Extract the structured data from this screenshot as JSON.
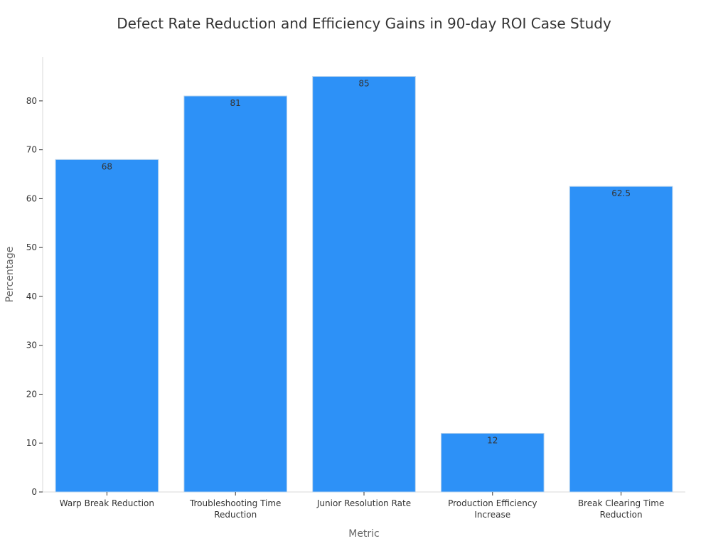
{
  "chart_data": {
    "type": "bar",
    "title": "Defect Rate Reduction and Efficiency Gains in 90-day ROI Case Study",
    "xlabel": "Metric",
    "ylabel": "Percentage",
    "categories": [
      [
        "Warp Break Reduction"
      ],
      [
        "Troubleshooting Time",
        "Reduction"
      ],
      [
        "Junior Resolution Rate"
      ],
      [
        "Production Efficiency",
        "Increase"
      ],
      [
        "Break Clearing Time",
        "Reduction"
      ]
    ],
    "values": [
      68,
      81,
      85,
      12,
      62.5
    ],
    "value_labels": [
      "68",
      "81",
      "85",
      "12",
      "62.5"
    ],
    "ylim": [
      0,
      89
    ],
    "yticks": [
      0,
      10,
      20,
      30,
      40,
      50,
      60,
      70,
      80
    ],
    "bar_color": "#2d91f7",
    "bar_edge_color": "#b9d4ee",
    "grid": false,
    "legend": "none"
  }
}
